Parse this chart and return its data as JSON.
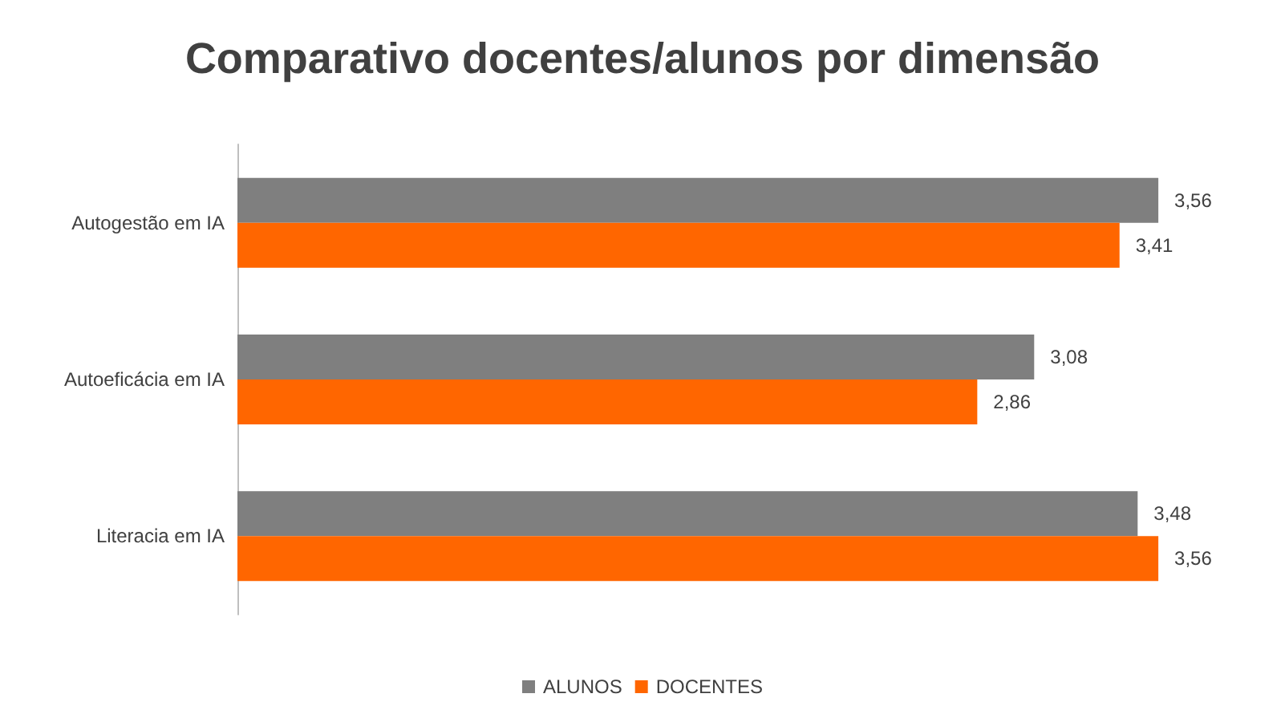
{
  "chart_data": {
    "type": "bar",
    "orientation": "horizontal",
    "title": "Comparativo docentes/alunos por dimensão",
    "categories": [
      "Autogestão em IA",
      "Autoeficácia em IA",
      "Literacia em IA"
    ],
    "series": [
      {
        "name": "ALUNOS",
        "color": "#7f7f7f",
        "values": [
          3.56,
          3.08,
          3.48
        ],
        "value_labels": [
          "3,56",
          "3,08",
          "3,48"
        ]
      },
      {
        "name": "DOCENTES",
        "color": "#ff6600",
        "values": [
          3.41,
          2.86,
          3.56
        ],
        "value_labels": [
          "3,41",
          "2,86",
          "3,56"
        ]
      }
    ],
    "tick_labels": "y",
    "grid": false,
    "legend": "bottom"
  }
}
